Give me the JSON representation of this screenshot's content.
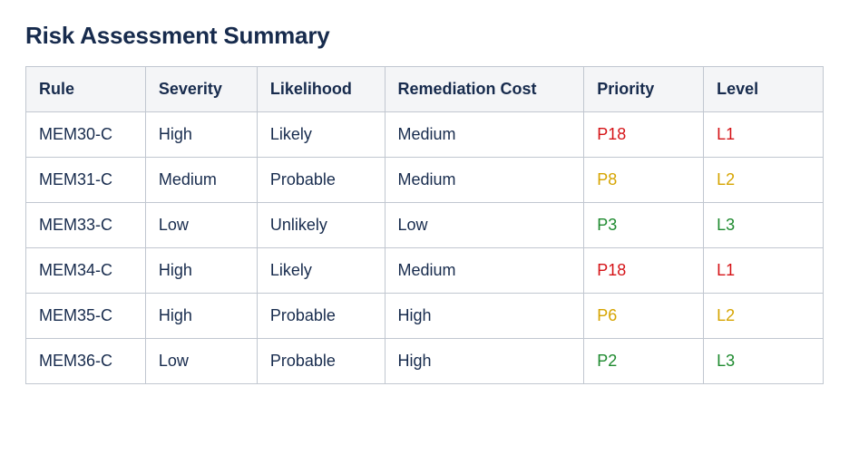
{
  "title": "Risk Assessment Summary",
  "table": {
    "columns": [
      {
        "label": "Rule",
        "width": "15%"
      },
      {
        "label": "Severity",
        "width": "14%"
      },
      {
        "label": "Likelihood",
        "width": "16%"
      },
      {
        "label": "Remediation Cost",
        "width": "25%"
      },
      {
        "label": "Priority",
        "width": "15%"
      },
      {
        "label": "Level",
        "width": "15%"
      }
    ],
    "rows": [
      {
        "rule": "MEM30-C",
        "severity": "High",
        "likelihood": "Likely",
        "remediation": "Medium",
        "priority": "P18",
        "level": "L1",
        "color": "#d51317"
      },
      {
        "rule": "MEM31-C",
        "severity": "Medium",
        "likelihood": "Probable",
        "remediation": "Medium",
        "priority": "P8",
        "level": "L2",
        "color": "#d6a400"
      },
      {
        "rule": "MEM33-C",
        "severity": "Low",
        "likelihood": "Unlikely",
        "remediation": "Low",
        "priority": "P3",
        "level": "L3",
        "color": "#1e8a2f"
      },
      {
        "rule": "MEM34-C",
        "severity": "High",
        "likelihood": "Likely",
        "remediation": "Medium",
        "priority": "P18",
        "level": "L1",
        "color": "#d51317"
      },
      {
        "rule": "MEM35-C",
        "severity": "High",
        "likelihood": "Probable",
        "remediation": "High",
        "priority": "P6",
        "level": "L2",
        "color": "#d6a400"
      },
      {
        "rule": "MEM36-C",
        "severity": "Low",
        "likelihood": "Probable",
        "remediation": "High",
        "priority": "P2",
        "level": "L3",
        "color": "#1e8a2f"
      }
    ],
    "header_bg": "#f4f5f7",
    "border_color": "#c1c7d0",
    "text_color": "#172b4d",
    "body_fontsize": 18,
    "header_fontsize": 18,
    "title_fontsize": 26
  }
}
